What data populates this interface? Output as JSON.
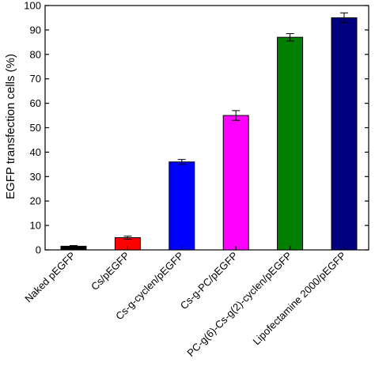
{
  "chart_data": {
    "type": "bar",
    "ylabel": "EGFP transfection cells (%)",
    "ylim": [
      0,
      100
    ],
    "yticks": [
      0,
      10,
      20,
      30,
      40,
      50,
      60,
      70,
      80,
      90,
      100
    ],
    "categories": [
      "Naked pEGFP",
      "Cs/pEGFP",
      "Cs-g-cyclen/pEGFP",
      "Cs-g-PC/pEGFP",
      "PC-g(6)-Cs-g(2)-cyclen/pEGFP",
      "Lipofectamine 2000/pEGFP"
    ],
    "values": [
      1.5,
      5,
      36,
      55,
      87,
      95
    ],
    "errors": [
      0.3,
      0.6,
      1.0,
      2.0,
      1.5,
      2.0
    ],
    "colors": [
      "#000000",
      "#ff0000",
      "#0000ff",
      "#ff00ff",
      "#008000",
      "#000080"
    ],
    "grid": false
  }
}
